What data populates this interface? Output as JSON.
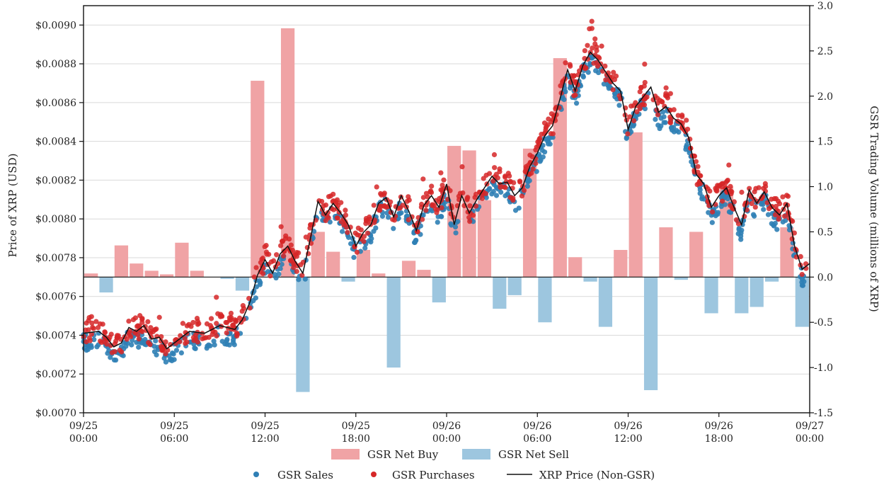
{
  "chart_data": {
    "type": "bar+line+scatter",
    "title": "",
    "ylabel": "Price of XRP (USD)",
    "y2label": "GSR Trading Volume (millions of XRP)",
    "ylim": [
      0.007,
      0.0091
    ],
    "y2lim": [
      -1.5,
      3.0
    ],
    "yticks": [
      "$0.0070",
      "$0.0072",
      "$0.0074",
      "$0.0076",
      "$0.0078",
      "$0.0080",
      "$0.0082",
      "$0.0084",
      "$0.0086",
      "$0.0088",
      "$0.0090"
    ],
    "y2ticks": [
      "-1.5",
      "-1.0",
      "-0.5",
      "0.0",
      "0.5",
      "1.0",
      "1.5",
      "2.0",
      "2.5",
      "3.0"
    ],
    "xlim_hours": [
      0,
      48
    ],
    "xticks": [
      {
        "hour": 0,
        "line1": "09/25",
        "line2": "00:00"
      },
      {
        "hour": 6,
        "line1": "09/25",
        "line2": "06:00"
      },
      {
        "hour": 12,
        "line1": "09/25",
        "line2": "12:00"
      },
      {
        "hour": 18,
        "line1": "09/25",
        "line2": "18:00"
      },
      {
        "hour": 24,
        "line1": "09/26",
        "line2": "00:00"
      },
      {
        "hour": 30,
        "line1": "09/26",
        "line2": "06:00"
      },
      {
        "hour": 36,
        "line1": "09/26",
        "line2": "12:00"
      },
      {
        "hour": 42,
        "line1": "09/26",
        "line2": "18:00"
      },
      {
        "hour": 48,
        "line1": "09/27",
        "line2": "00:00"
      }
    ],
    "legend": {
      "placement": "bottom",
      "net_buy": "GSR Net Buy",
      "net_sell": "GSR Net Sell",
      "sales": "GSR Sales",
      "purchases": "GSR Purchases",
      "price": "XRP Price (Non-GSR)"
    },
    "colors": {
      "net_buy": "#f0a3a5",
      "net_sell": "#9dc6df",
      "sales": "#2f7fb5",
      "purchases": "#d62728",
      "price": "#111111"
    },
    "bar_width_hours": 0.9,
    "net_buy": [
      [
        0.5,
        0.04
      ],
      [
        2.5,
        0.35
      ],
      [
        3.5,
        0.15
      ],
      [
        4.5,
        0.07
      ],
      [
        5.5,
        0.03
      ],
      [
        6.5,
        0.38
      ],
      [
        7.5,
        0.07
      ],
      [
        11.5,
        2.17
      ],
      [
        13.5,
        2.75
      ],
      [
        15.5,
        0.5
      ],
      [
        16.5,
        0.28
      ],
      [
        18.5,
        0.3
      ],
      [
        19.5,
        0.04
      ],
      [
        21.5,
        0.18
      ],
      [
        22.5,
        0.08
      ],
      [
        24.5,
        1.45
      ],
      [
        25.5,
        1.4
      ],
      [
        26.5,
        0.85
      ],
      [
        29.5,
        1.42
      ],
      [
        31.5,
        2.42
      ],
      [
        32.5,
        0.22
      ],
      [
        35.5,
        0.3
      ],
      [
        36.5,
        1.6
      ],
      [
        38.5,
        0.55
      ],
      [
        40.5,
        0.5
      ],
      [
        42.5,
        1.0
      ],
      [
        46.5,
        0.55
      ]
    ],
    "net_sell": [
      [
        1.5,
        -0.17
      ],
      [
        9.5,
        -0.02
      ],
      [
        10.5,
        -0.15
      ],
      [
        14.5,
        -1.27
      ],
      [
        17.5,
        -0.05
      ],
      [
        20.5,
        -1.0
      ],
      [
        23.5,
        -0.28
      ],
      [
        27.5,
        -0.35
      ],
      [
        28.5,
        -0.2
      ],
      [
        30.5,
        -0.5
      ],
      [
        33.5,
        -0.05
      ],
      [
        34.5,
        -0.55
      ],
      [
        37.5,
        -1.25
      ],
      [
        39.5,
        -0.03
      ],
      [
        41.5,
        -0.4
      ],
      [
        43.5,
        -0.4
      ],
      [
        44.5,
        -0.33
      ],
      [
        45.5,
        -0.05
      ],
      [
        47.5,
        -0.55
      ]
    ],
    "price": [
      [
        0,
        0.00741
      ],
      [
        1,
        0.00742
      ],
      [
        1.5,
        0.00739
      ],
      [
        2,
        0.00734
      ],
      [
        2.5,
        0.00736
      ],
      [
        3,
        0.00744
      ],
      [
        3.5,
        0.00742
      ],
      [
        4,
        0.00745
      ],
      [
        4.5,
        0.00738
      ],
      [
        5,
        0.00739
      ],
      [
        5.5,
        0.00733
      ],
      [
        6,
        0.00736
      ],
      [
        7,
        0.00742
      ],
      [
        8,
        0.00741
      ],
      [
        9,
        0.00745
      ],
      [
        10,
        0.00743
      ],
      [
        10.5,
        0.00748
      ],
      [
        11,
        0.00757
      ],
      [
        11.5,
        0.00771
      ],
      [
        12,
        0.00779
      ],
      [
        12.5,
        0.00772
      ],
      [
        13,
        0.00782
      ],
      [
        13.5,
        0.00786
      ],
      [
        14,
        0.00778
      ],
      [
        14.5,
        0.00772
      ],
      [
        15,
        0.0079
      ],
      [
        15.5,
        0.00809
      ],
      [
        16,
        0.00802
      ],
      [
        16.5,
        0.00808
      ],
      [
        17,
        0.00803
      ],
      [
        17.5,
        0.00797
      ],
      [
        18,
        0.00786
      ],
      [
        18.5,
        0.00793
      ],
      [
        19,
        0.00797
      ],
      [
        19.5,
        0.00808
      ],
      [
        20,
        0.00811
      ],
      [
        20.5,
        0.00801
      ],
      [
        21,
        0.00812
      ],
      [
        21.5,
        0.00804
      ],
      [
        22,
        0.00794
      ],
      [
        22.5,
        0.00807
      ],
      [
        23,
        0.00812
      ],
      [
        23.5,
        0.00806
      ],
      [
        24,
        0.00818
      ],
      [
        24.5,
        0.00797
      ],
      [
        25,
        0.00812
      ],
      [
        25.5,
        0.00803
      ],
      [
        26,
        0.0081
      ],
      [
        26.5,
        0.00816
      ],
      [
        27,
        0.00822
      ],
      [
        27.5,
        0.00818
      ],
      [
        28,
        0.00819
      ],
      [
        28.5,
        0.00812
      ],
      [
        29,
        0.00816
      ],
      [
        29.5,
        0.00827
      ],
      [
        30,
        0.00834
      ],
      [
        30.5,
        0.00843
      ],
      [
        31,
        0.00848
      ],
      [
        31.5,
        0.00862
      ],
      [
        32,
        0.00877
      ],
      [
        32.5,
        0.00866
      ],
      [
        33,
        0.00879
      ],
      [
        33.5,
        0.00886
      ],
      [
        34,
        0.00882
      ],
      [
        34.5,
        0.00876
      ],
      [
        35,
        0.0087
      ],
      [
        35.5,
        0.00866
      ],
      [
        36,
        0.00846
      ],
      [
        36.5,
        0.00858
      ],
      [
        37,
        0.00863
      ],
      [
        37.5,
        0.00868
      ],
      [
        38,
        0.00855
      ],
      [
        38.5,
        0.00858
      ],
      [
        39,
        0.00852
      ],
      [
        39.5,
        0.00849
      ],
      [
        40,
        0.00842
      ],
      [
        40.5,
        0.00823
      ],
      [
        41,
        0.00818
      ],
      [
        41.5,
        0.00806
      ],
      [
        42,
        0.00812
      ],
      [
        42.5,
        0.00816
      ],
      [
        43,
        0.00806
      ],
      [
        43.5,
        0.00797
      ],
      [
        44,
        0.00815
      ],
      [
        44.5,
        0.00808
      ],
      [
        45,
        0.00814
      ],
      [
        45.5,
        0.00806
      ],
      [
        46,
        0.00802
      ],
      [
        46.5,
        0.00808
      ],
      [
        47,
        0.00786
      ],
      [
        47.5,
        0.00774
      ],
      [
        48,
        0.00777
      ]
    ]
  }
}
